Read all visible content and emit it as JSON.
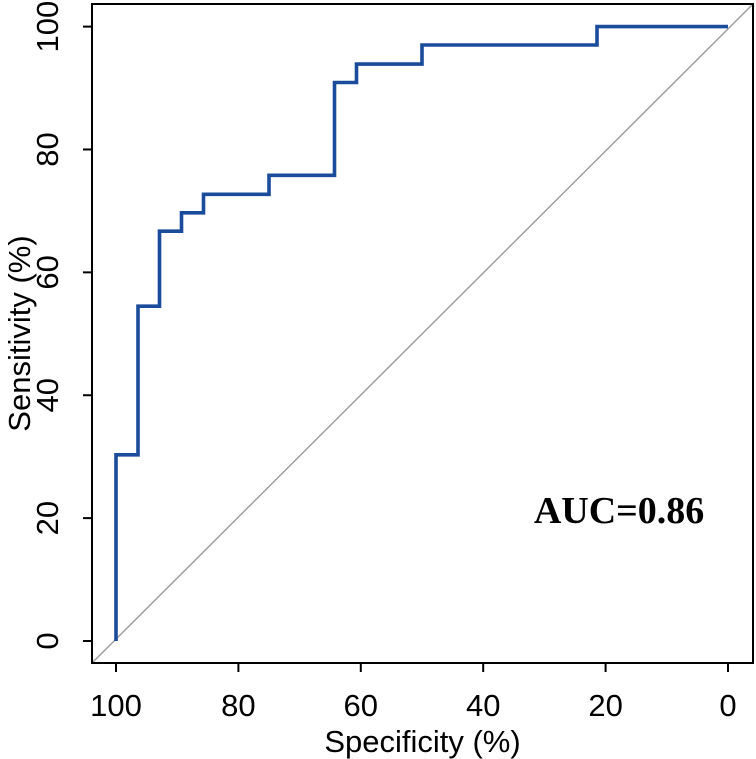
{
  "chart_data": {
    "type": "line",
    "subtype": "roc-step-curve",
    "xlabel": "Specificity (%)",
    "ylabel": "Sensitivity (%)",
    "x_ticks": [
      100,
      80,
      60,
      40,
      20,
      0
    ],
    "y_ticks": [
      0,
      20,
      40,
      60,
      80,
      100
    ],
    "xlim": [
      100,
      0
    ],
    "ylim": [
      0,
      100
    ],
    "x_axis_reversed": true,
    "grid": false,
    "legend": "none",
    "series": [
      {
        "name": "ROC curve",
        "color": "#1b4c9b",
        "points_spec_sens": [
          [
            100,
            0
          ],
          [
            100,
            30.3
          ],
          [
            96.4,
            30.3
          ],
          [
            96.4,
            54.5
          ],
          [
            92.9,
            54.5
          ],
          [
            92.9,
            66.7
          ],
          [
            89.3,
            66.7
          ],
          [
            89.3,
            69.7
          ],
          [
            85.7,
            69.7
          ],
          [
            85.7,
            72.7
          ],
          [
            75.0,
            72.7
          ],
          [
            75.0,
            75.8
          ],
          [
            64.3,
            75.8
          ],
          [
            64.3,
            90.9
          ],
          [
            60.7,
            90.9
          ],
          [
            60.7,
            93.9
          ],
          [
            50.0,
            93.9
          ],
          [
            50.0,
            97.0
          ],
          [
            21.4,
            97.0
          ],
          [
            21.4,
            100
          ],
          [
            0,
            100
          ]
        ]
      }
    ],
    "reference_line": {
      "name": "chance diagonal",
      "from_spec_sens": [
        100,
        0
      ],
      "to_spec_sens": [
        0,
        100
      ],
      "color": "#9b9b9b"
    },
    "annotations": [
      {
        "text": "AUC=0.86",
        "spec": 17.8,
        "sens": 21.3
      }
    ]
  },
  "auc": {
    "label": "AUC=0.86",
    "value": 0.86
  },
  "colors": {
    "curve": "#1b4c9b",
    "diagonal": "#9b9b9b",
    "axis": "#000000",
    "text": "#000000",
    "background": "#ffffff"
  }
}
